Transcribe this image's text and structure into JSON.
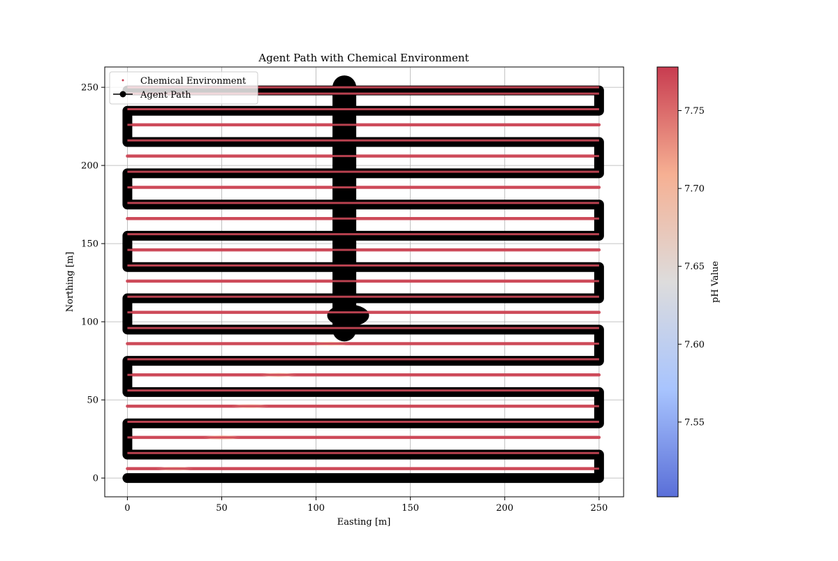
{
  "chart_data": {
    "type": "scatter",
    "title": "Agent Path with Chemical Environment",
    "xlabel": "Easting [m]",
    "ylabel": "Northing [m]",
    "xlim": [
      -12,
      263
    ],
    "ylim": [
      -12,
      263
    ],
    "xticks": [
      0,
      50,
      100,
      150,
      200,
      250
    ],
    "yticks": [
      0,
      50,
      100,
      150,
      200,
      250
    ],
    "grid": true,
    "legend_position": "upper left",
    "legend": [
      {
        "label": "Chemical Environment",
        "marker": "point",
        "color": "#c83c50"
      },
      {
        "label": "Agent Path",
        "marker": "circle-line",
        "color": "#000000"
      }
    ],
    "colorbar": {
      "label": "pH Value",
      "range": [
        7.502,
        7.778
      ],
      "ticks": [
        7.55,
        7.6,
        7.65,
        7.7,
        7.75
      ],
      "tick_labels": [
        "7.55",
        "7.60",
        "7.65",
        "7.70",
        "7.75"
      ],
      "colormap": "coolwarm",
      "colors": [
        "#5a6fd8",
        "#a8c4fe",
        "#dddcdc",
        "#f6b093",
        "#c83c50"
      ]
    },
    "series": [
      {
        "name": "Chemical Environment",
        "kind": "scatter-rows",
        "x_range": [
          0,
          250
        ],
        "rows_y": [
          0,
          6,
          16,
          26,
          36,
          46,
          56,
          66,
          76,
          86,
          96,
          106,
          116,
          126,
          136,
          146,
          156,
          166,
          176,
          186,
          196,
          206,
          216,
          226,
          236,
          246,
          250
        ],
        "base_value": 7.77,
        "plume": [
          {
            "y": 6,
            "x": 25,
            "value": 7.69
          },
          {
            "y": 16,
            "x": 42,
            "value": 7.7
          },
          {
            "y": 26,
            "x": 50,
            "value": 7.71
          },
          {
            "y": 36,
            "x": 60,
            "value": 7.72
          },
          {
            "y": 46,
            "x": 65,
            "value": 7.7
          },
          {
            "y": 56,
            "x": 72,
            "value": 7.69
          },
          {
            "y": 66,
            "x": 80,
            "value": 7.7
          },
          {
            "y": 76,
            "x": 90,
            "value": 7.71
          },
          {
            "y": 86,
            "x": 108,
            "value": 7.7
          },
          {
            "y": 116,
            "x": 127,
            "value": 7.66
          }
        ]
      },
      {
        "name": "Agent Path",
        "kind": "lawnmower",
        "x_range": [
          0,
          250
        ],
        "legs_y": [
          0,
          15,
          35,
          55,
          75,
          95,
          115,
          135,
          155,
          175,
          195,
          215,
          235,
          248
        ],
        "vertical_segment": {
          "x": 115,
          "y_range": [
            95,
            250
          ]
        },
        "hotspot": {
          "x": 117,
          "y": 104
        }
      }
    ]
  }
}
